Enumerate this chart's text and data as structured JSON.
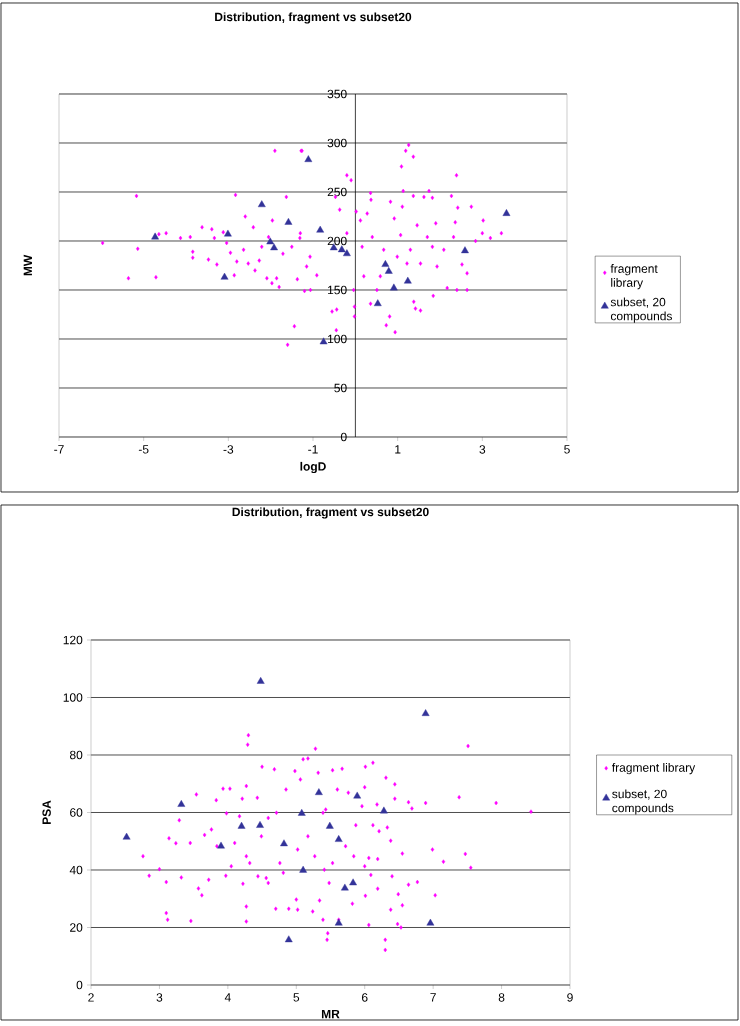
{
  "chart_data": [
    {
      "type": "scatter",
      "title": "Distribution, fragment vs subset20",
      "xlabel": "logD",
      "ylabel": "MW",
      "xlim": [
        -7,
        5
      ],
      "xticks": [
        -7,
        -5,
        -3,
        -1,
        1,
        3,
        5
      ],
      "ylim": [
        0,
        350
      ],
      "yticks": [
        0,
        50,
        100,
        150,
        200,
        250,
        300,
        350
      ],
      "grid": "y",
      "legend": "right",
      "series": [
        {
          "name": "fragment library",
          "color": "#ff00ff",
          "marker": "diamond",
          "x": [
            -5.97,
            -5.17,
            -5.36,
            -5.14,
            -4.71,
            -4.64,
            -4.47,
            -4.13,
            -3.9,
            -3.84,
            -3.84,
            -3.62,
            -3.47,
            -3.39,
            -3.27,
            -3.33,
            -3.12,
            -3.04,
            -2.95,
            -2.86,
            -2.83,
            -2.8,
            -2.64,
            -2.6,
            -2.41,
            -2.53,
            -2.37,
            -2.27,
            -2.09,
            -1.97,
            -1.9,
            -1.96,
            -1.86,
            -1.8,
            -1.63,
            -1.6,
            -1.44,
            -1.28,
            -1.31,
            -1.2,
            -1.37,
            -1.06,
            -1.71,
            -1.5,
            -1.15,
            -2.05,
            -2.21,
            -1.26,
            -1.3,
            -1.07,
            -0.91,
            -0.55,
            -0.45,
            -0.44,
            -0.47,
            -0.37,
            -0.2,
            -0.1,
            -0.2,
            -0.04,
            -0.02,
            -0.02,
            0.02,
            0.12,
            0.28,
            0.36,
            0.37,
            0.4,
            0.16,
            0.2,
            0.36,
            0.51,
            0.73,
            0.81,
            0.94,
            0.83,
            0.92,
            1.09,
            1.19,
            1.26,
            1.37,
            1.13,
            1.11,
            1.07,
            0.99,
            1.22,
            1.38,
            1.54,
            1.42,
            1.37,
            1.62,
            1.74,
            1.82,
            1.46,
            1.7,
            1.82,
            1.9,
            1.84,
            1.93,
            2.17,
            2.09,
            2.32,
            2.27,
            2.39,
            2.42,
            2.36,
            2.4,
            2.52,
            2.64,
            2.64,
            2.74,
            2.84,
            3.0,
            3.02,
            3.19,
            3.45,
            1.54,
            0.67,
            0.59,
            1.3
          ],
          "values": [
            198,
            246,
            162,
            192,
            163,
            207,
            208,
            203,
            204,
            189,
            183,
            214,
            181,
            212,
            176,
            203,
            209,
            198,
            188,
            165,
            247,
            179,
            191,
            225,
            214,
            177,
            170,
            180,
            162,
            157,
            292,
            221,
            162,
            153,
            245,
            94,
            113,
            292,
            203,
            149,
            161,
            150,
            187,
            194,
            174,
            204,
            194,
            292,
            208,
            184,
            165,
            128,
            109,
            130,
            245,
            232,
            267,
            262,
            208,
            150,
            123,
            133,
            230,
            221,
            228,
            249,
            242,
            204,
            194,
            164,
            136,
            150,
            114,
            123,
            107,
            240,
            223,
            276,
            292,
            298,
            286,
            251,
            235,
            206,
            184,
            177,
            138,
            129,
            131,
            246,
            245,
            251,
            244,
            216,
            204,
            194,
            218,
            144,
            174,
            152,
            191,
            204,
            246,
            267,
            234,
            219,
            150,
            176,
            150,
            167,
            235,
            200,
            208,
            221,
            203,
            208,
            177,
            191,
            164,
            191
          ]
        },
        {
          "name": "subset, 20 compounds",
          "color": "#333399",
          "marker": "triangle",
          "x": [
            -4.73,
            -3.01,
            -3.09,
            -2.21,
            -1.58,
            -2.01,
            -1.92,
            -1.11,
            -0.83,
            -0.75,
            -0.51,
            -0.32,
            -0.2,
            0.71,
            0.79,
            0.53,
            0.91,
            1.24,
            2.59,
            3.57
          ],
          "values": [
            204,
            207,
            163,
            237,
            219,
            199,
            193,
            283,
            211,
            97,
            193,
            191,
            187,
            176,
            169,
            136,
            152,
            159,
            190,
            228
          ]
        }
      ]
    },
    {
      "type": "scatter",
      "title": "Distribution, fragment vs subset20",
      "xlabel": "MR",
      "ylabel": "PSA",
      "xlim": [
        2,
        9
      ],
      "xticks": [
        2,
        3,
        4,
        5,
        6,
        7,
        8,
        9
      ],
      "ylim": [
        0,
        120
      ],
      "yticks": [
        0,
        20,
        40,
        60,
        80,
        100,
        120
      ],
      "grid": "y",
      "legend": "right",
      "series": [
        {
          "name": "fragment library",
          "color": "#ff00ff",
          "marker": "diamond",
          "x": [
            2.76,
            2.85,
            3.0,
            3.1,
            3.1,
            3.12,
            3.14,
            3.24,
            3.29,
            3.32,
            3.46,
            3.45,
            3.54,
            3.57,
            3.62,
            3.66,
            3.72,
            3.76,
            3.83,
            3.84,
            3.93,
            3.98,
            3.97,
            4.03,
            4.05,
            4.1,
            4.17,
            4.21,
            4.22,
            4.27,
            4.27,
            4.3,
            4.29,
            4.27,
            4.27,
            4.32,
            4.43,
            4.44,
            4.5,
            4.49,
            4.56,
            4.59,
            4.59,
            4.68,
            4.7,
            4.71,
            4.76,
            4.81,
            4.85,
            4.89,
            4.98,
            5.0,
            5.02,
            5.02,
            5.06,
            5.1,
            5.17,
            5.17,
            5.24,
            5.28,
            5.27,
            5.32,
            5.41,
            5.39,
            5.46,
            5.39,
            5.34,
            5.53,
            5.67,
            6.01,
            6.12,
            5.43,
            5.6,
            5.76,
            5.96,
            6.0,
            6.18,
            6.31,
            6.44,
            6.44,
            6.64,
            6.89,
            6.69,
            7.38,
            7.51,
            7.92,
            8.43,
            6.99,
            7.15,
            7.47,
            7.55,
            7.03,
            6.77,
            6.64,
            6.49,
            6.53,
            6.48,
            6.55,
            6.3,
            6.3,
            6.06,
            6.01,
            5.82,
            5.45,
            5.62,
            6.38,
            6.4,
            6.19,
            6.09,
            6.19,
            6.06,
            6.0,
            6.38,
            6.55,
            6.33,
            6.21,
            6.12,
            5.87,
            5.72,
            5.53,
            5.48,
            5.84
          ],
          "values": [
            44.8,
            38.0,
            40.3,
            35.8,
            25.0,
            22.7,
            51.0,
            49.3,
            57.3,
            37.4,
            22.3,
            49.4,
            66.3,
            33.6,
            31.2,
            52.2,
            36.6,
            54.1,
            64.3,
            48.3,
            68.3,
            59.7,
            38.0,
            68.3,
            41.3,
            49.4,
            58.7,
            64.8,
            35.2,
            27.3,
            22.1,
            86.9,
            83.6,
            44.8,
            69.2,
            42.4,
            65.1,
            37.8,
            75.9,
            51.7,
            37.2,
            35.5,
            58.1,
            75.0,
            26.5,
            59.9,
            42.4,
            39.0,
            68.0,
            26.5,
            74.4,
            29.7,
            26.2,
            47.1,
            71.5,
            78.5,
            78.8,
            51.7,
            25.6,
            82.2,
            44.8,
            73.8,
            40.1,
            59.9,
            18.0,
            22.7,
            29.4,
            74.7,
            75.2,
            75.9,
            77.3,
            61.0,
            68.0,
            66.9,
            62.2,
            68.8,
            62.8,
            72.1,
            69.8,
            64.8,
            63.6,
            63.3,
            61.4,
            65.3,
            83.1,
            63.3,
            60.3,
            47.1,
            42.9,
            45.6,
            40.8,
            31.2,
            35.8,
            34.9,
            31.6,
            20.0,
            21.2,
            27.7,
            15.7,
            12.2,
            20.9,
            31.0,
            28.3,
            15.7,
            22.7,
            26.2,
            37.8,
            33.5,
            38.3,
            43.8,
            44.2,
            41.3,
            50.2,
            45.7,
            54.8,
            53.5,
            55.6,
            55.6,
            48.3,
            42.4,
            35.5,
            44.8
          ]
        },
        {
          "name": "subset, 20 compounds",
          "color": "#333399",
          "marker": "triangle",
          "x": [
            4.48,
            3.32,
            2.52,
            3.9,
            4.2,
            4.47,
            4.82,
            5.08,
            5.33,
            5.1,
            4.89,
            5.49,
            5.62,
            5.89,
            6.28,
            6.89,
            5.71,
            5.83,
            5.62,
            6.96
          ],
          "values": [
            105.6,
            62.8,
            51.4,
            48.3,
            55.2,
            55.5,
            49.1,
            59.7,
            66.9,
            39.9,
            15.7,
            55.2,
            50.6,
            65.7,
            60.5,
            94.4,
            33.7,
            35.5,
            21.5,
            21.5
          ]
        }
      ]
    }
  ]
}
